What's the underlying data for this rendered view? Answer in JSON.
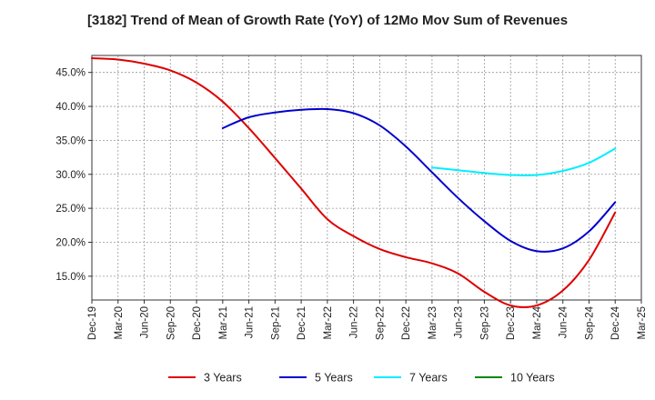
{
  "chart_data": {
    "type": "line",
    "title": "[3182]  Trend of Mean of Growth Rate (YoY) of 12Mo Mov Sum of Revenues",
    "xlabel": "",
    "ylabel": "",
    "x": [
      "Dec-19",
      "Mar-20",
      "Jun-20",
      "Sep-20",
      "Dec-20",
      "Mar-21",
      "Jun-21",
      "Sep-21",
      "Dec-21",
      "Mar-22",
      "Jun-22",
      "Sep-22",
      "Dec-22",
      "Mar-23",
      "Jun-23",
      "Sep-23",
      "Dec-23",
      "Mar-24",
      "Jun-24",
      "Sep-24",
      "Dec-24",
      "Mar-25"
    ],
    "ylim": [
      11.5,
      47.5
    ],
    "yticks": [
      15,
      20,
      25,
      30,
      35,
      40,
      45
    ],
    "ytick_labels": [
      "15.0%",
      "20.0%",
      "25.0%",
      "30.0%",
      "35.0%",
      "40.0%",
      "45.0%"
    ],
    "grid": true,
    "legend_position": "bottom",
    "series": [
      {
        "name": "3 Years",
        "color": "#dd0000",
        "values": [
          47.1,
          46.9,
          46.3,
          45.3,
          43.5,
          40.7,
          36.8,
          32.4,
          27.9,
          23.4,
          20.9,
          19.0,
          17.8,
          16.9,
          15.4,
          12.7,
          10.7,
          10.7,
          12.9,
          17.4,
          24.4,
          null
        ]
      },
      {
        "name": "5 Years",
        "color": "#0000cc",
        "values": [
          null,
          null,
          null,
          null,
          null,
          36.8,
          38.4,
          39.1,
          39.5,
          39.6,
          39.0,
          37.2,
          34.1,
          30.3,
          26.5,
          23.1,
          20.2,
          18.7,
          19.1,
          21.6,
          25.9,
          null
        ]
      },
      {
        "name": "7 Years",
        "color": "#00eeff",
        "values": [
          null,
          null,
          null,
          null,
          null,
          null,
          null,
          null,
          null,
          null,
          null,
          null,
          null,
          31.0,
          30.6,
          30.2,
          29.9,
          29.9,
          30.5,
          31.7,
          33.8,
          null
        ]
      },
      {
        "name": "10 Years",
        "color": "#008800",
        "values": [
          null,
          null,
          null,
          null,
          null,
          null,
          null,
          null,
          null,
          null,
          null,
          null,
          null,
          null,
          null,
          null,
          null,
          null,
          null,
          null,
          null,
          null
        ]
      }
    ]
  }
}
